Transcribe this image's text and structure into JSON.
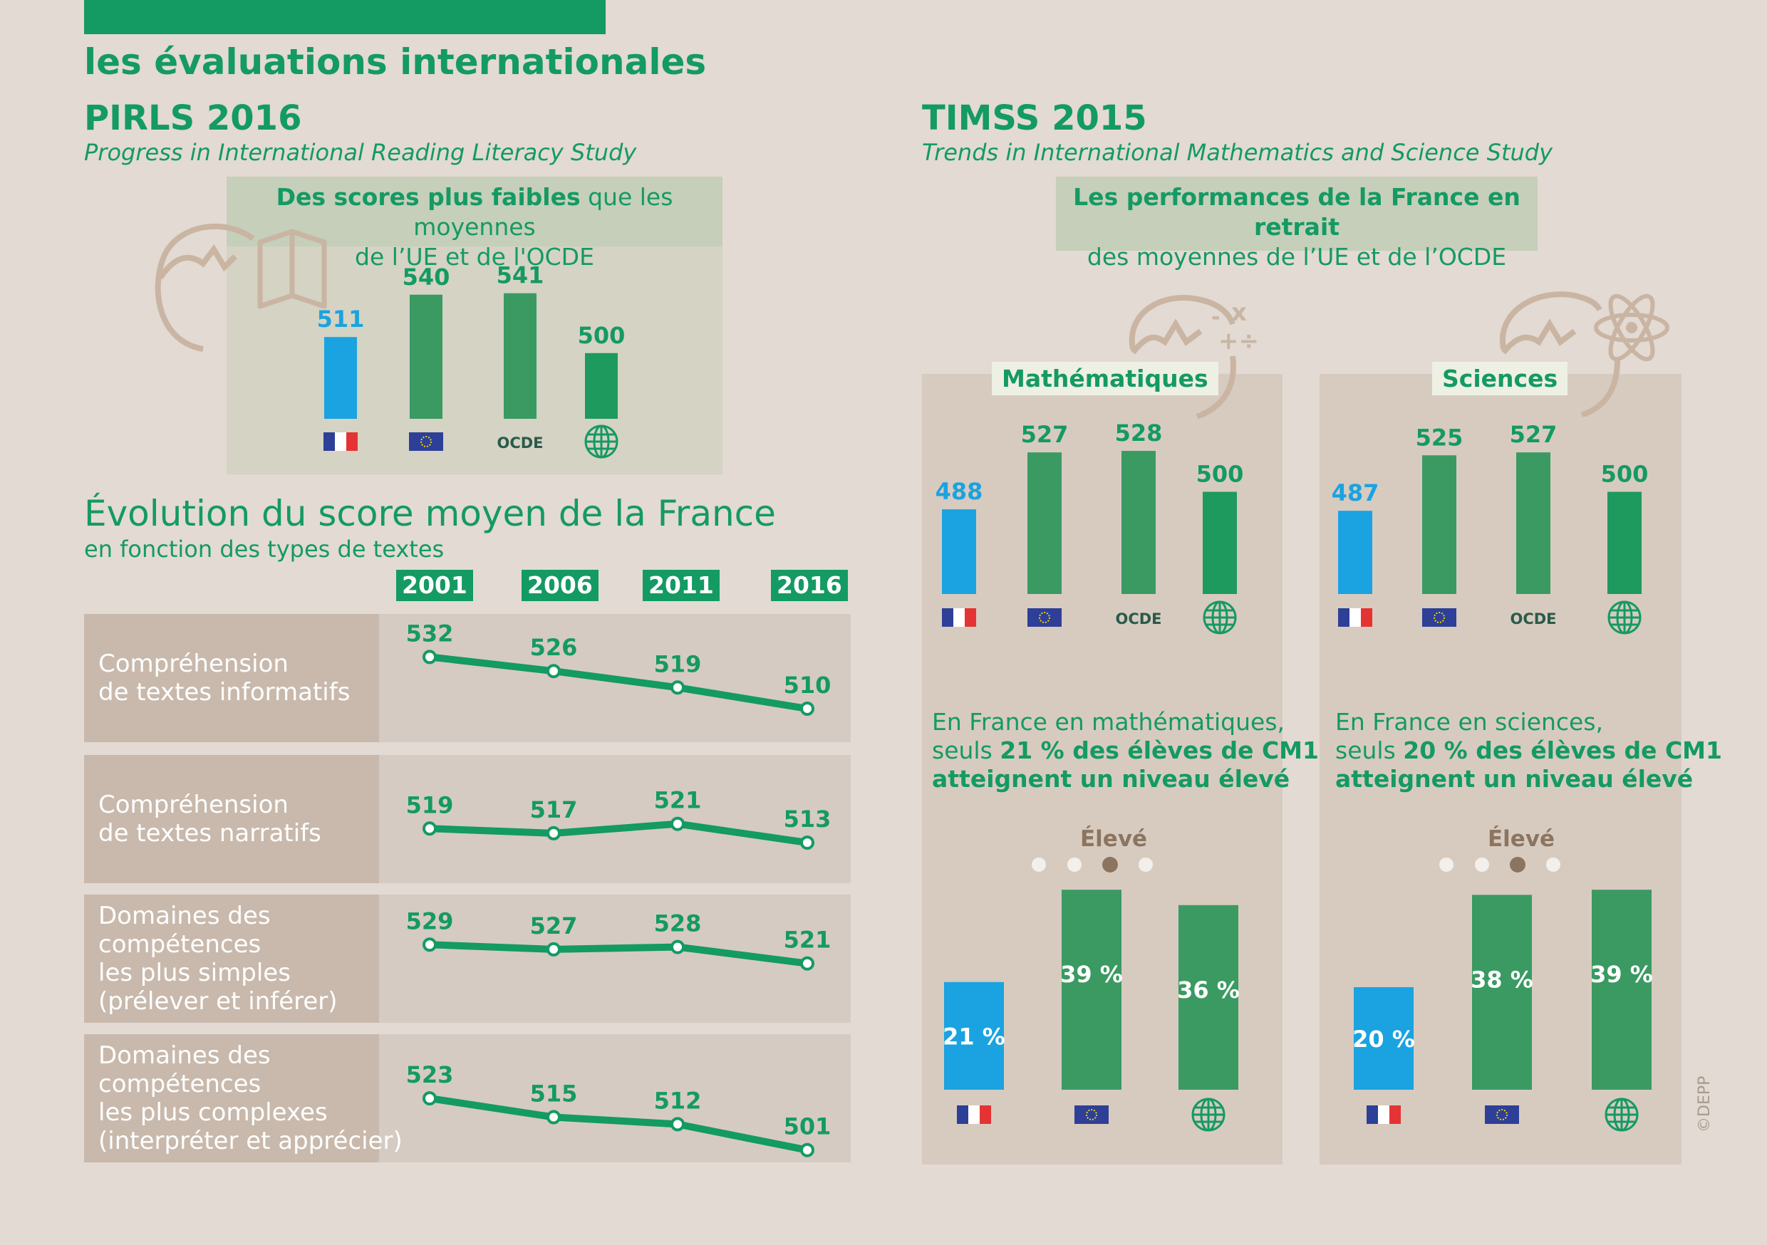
{
  "header": {
    "title": "les évaluations internationales"
  },
  "pirls": {
    "title": "PIRLS 2016",
    "subtitle": "Progress in International Reading Literacy Study",
    "box_title_bold": "Des scores plus faibles",
    "box_title_rest": " que les moyennes",
    "box_title_line2": "de l’UE et de l'OCDE",
    "ocde_label": "OCDE"
  },
  "evolution": {
    "title": "Évolution du score moyen de la France",
    "subtitle": "en fonction des types de textes",
    "rows": [
      {
        "label": [
          "Compréhension",
          "de textes informatifs"
        ]
      },
      {
        "label": [
          "Compréhension",
          "de textes narratifs"
        ]
      },
      {
        "label": [
          "Domaines des",
          "compétences",
          "les plus simples",
          "(prélever et inférer)"
        ]
      },
      {
        "label": [
          "Domaines des",
          "compétences",
          "les plus complexes",
          "(interpréter et apprécier)"
        ]
      }
    ]
  },
  "timss": {
    "title": "TIMSS 2015",
    "subtitle": "Trends in International Mathematics and Science Study",
    "box_line1": "Les performances de la France en retrait",
    "box_line2": "des moyennes de l’UE et de l’OCDE",
    "ocde_label": "OCDE",
    "math": {
      "tab": "Mathématiques",
      "text_line1": "En France en mathématiques,",
      "text_line2_pre": "seuls ",
      "text_line2_bold": "21 % des élèves de CM1",
      "text_line3": "atteignent un niveau élevé",
      "level": "Élevé"
    },
    "sci": {
      "tab": "Sciences",
      "text_line1": "En France en sciences,",
      "text_line2_pre": "seuls ",
      "text_line2_bold": "20 % des élèves de CM1",
      "text_line3": "atteignent un niveau élevé",
      "level": "Élevé"
    }
  },
  "credit": "©DEPP",
  "colors": {
    "green": "#149a63",
    "blue": "#1aa3e0",
    "bar_green": "#3a9a62",
    "beige": "#e2dad3"
  },
  "chart_data": [
    {
      "type": "bar",
      "title": "PIRLS 2016",
      "categories": [
        "France",
        "UE",
        "OCDE",
        "Monde"
      ],
      "values": [
        511,
        540,
        541,
        500
      ]
    },
    {
      "type": "line",
      "title": "Évolution du score moyen de la France",
      "x": [
        "2001",
        "2006",
        "2011",
        "2016"
      ],
      "series": [
        {
          "name": "Compréhension de textes informatifs",
          "values": [
            532,
            526,
            519,
            510
          ]
        },
        {
          "name": "Compréhension de textes narratifs",
          "values": [
            519,
            517,
            521,
            513
          ]
        },
        {
          "name": "Domaines des compétences les plus simples (prélever et inférer)",
          "values": [
            529,
            527,
            528,
            521
          ]
        },
        {
          "name": "Domaines des compétences les plus complexes (interpréter et apprécier)",
          "values": [
            523,
            515,
            512,
            501
          ]
        }
      ]
    },
    {
      "type": "bar",
      "title": "Mathématiques",
      "categories": [
        "France",
        "UE",
        "OCDE",
        "Monde"
      ],
      "values": [
        488,
        527,
        528,
        500
      ]
    },
    {
      "type": "bar",
      "title": "Sciences",
      "categories": [
        "France",
        "UE",
        "OCDE",
        "Monde"
      ],
      "values": [
        487,
        525,
        527,
        500
      ]
    },
    {
      "type": "bar",
      "title": "Mathématiques",
      "categories": [
        "France",
        "UE",
        "Monde"
      ],
      "values": [
        21,
        39,
        36
      ],
      "unit": "%"
    },
    {
      "type": "bar",
      "title": "Sciences",
      "categories": [
        "France",
        "UE",
        "Monde"
      ],
      "values": [
        20,
        38,
        39
      ],
      "unit": "%"
    }
  ]
}
